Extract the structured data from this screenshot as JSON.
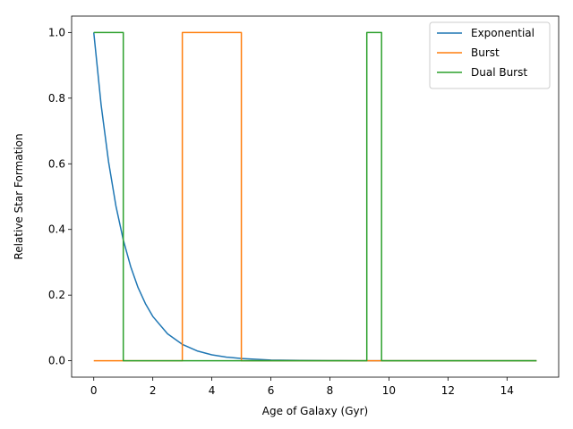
{
  "chart_data": {
    "type": "line",
    "xlabel": "Age of Galaxy (Gyr)",
    "ylabel": "Relative Star Formation",
    "xlim": [
      -0.75,
      15.75
    ],
    "ylim": [
      -0.05,
      1.05
    ],
    "xticks": [
      0,
      2,
      4,
      6,
      8,
      10,
      12,
      14
    ],
    "yticks": [
      0.0,
      0.2,
      0.4,
      0.6,
      0.8,
      1.0
    ],
    "xtick_labels": [
      "0",
      "2",
      "4",
      "6",
      "8",
      "10",
      "12",
      "14"
    ],
    "ytick_labels": [
      "0.0",
      "0.2",
      "0.4",
      "0.6",
      "0.8",
      "1.0"
    ],
    "grid": false,
    "legend_position": "top-right",
    "series": [
      {
        "name": "Exponential",
        "color": "#1f77b4",
        "x": [
          0,
          0.25,
          0.5,
          0.75,
          1.0,
          1.25,
          1.5,
          1.75,
          2.0,
          2.5,
          3.0,
          3.5,
          4.0,
          4.5,
          5.0,
          6.0,
          7.0,
          8.0,
          9.0,
          10.0,
          12.0,
          15.0
        ],
        "y": [
          1.0,
          0.779,
          0.607,
          0.472,
          0.368,
          0.287,
          0.223,
          0.174,
          0.135,
          0.082,
          0.05,
          0.03,
          0.018,
          0.011,
          0.007,
          0.002,
          0.001,
          0.0003,
          0.0001,
          0.0,
          0.0,
          0.0
        ]
      },
      {
        "name": "Burst",
        "color": "#ff7f0e",
        "x": [
          0,
          3.0,
          3.0,
          5.0,
          5.0,
          15.0
        ],
        "y": [
          0,
          0,
          1,
          1,
          0,
          0
        ]
      },
      {
        "name": "Dual Burst",
        "color": "#2ca02c",
        "x": [
          0,
          1.0,
          1.0,
          9.25,
          9.25,
          9.75,
          9.75,
          15.0
        ],
        "y": [
          1,
          1,
          0,
          0,
          1,
          1,
          0,
          0
        ]
      }
    ]
  }
}
